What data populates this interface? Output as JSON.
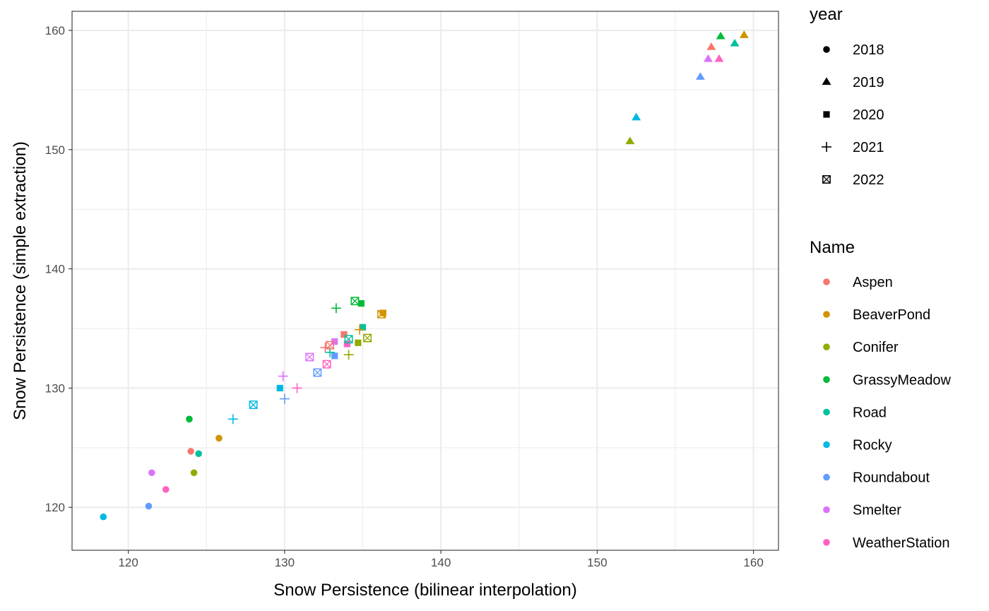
{
  "chart_data": {
    "type": "scatter",
    "xlabel": "Snow Persistence (bilinear interpolation)",
    "ylabel": "Snow Persistence (simple extraction)",
    "xlim": [
      116.4,
      161.6
    ],
    "ylim": [
      116.4,
      161.6
    ],
    "xticks": [
      120,
      130,
      140,
      150,
      160
    ],
    "yticks": [
      120,
      130,
      140,
      150,
      160
    ],
    "grid": true,
    "legend_position": "right",
    "legend_shape": {
      "title": "year",
      "entries": [
        {
          "label": "2018",
          "shape": "circle"
        },
        {
          "label": "2019",
          "shape": "triangle"
        },
        {
          "label": "2020",
          "shape": "square"
        },
        {
          "label": "2021",
          "shape": "plus"
        },
        {
          "label": "2022",
          "shape": "boxcross"
        }
      ]
    },
    "legend_color": {
      "title": "Name",
      "entries": [
        {
          "label": "Aspen",
          "color": "#F8766D"
        },
        {
          "label": "BeaverPond",
          "color": "#D39200"
        },
        {
          "label": "Conifer",
          "color": "#93AA00"
        },
        {
          "label": "GrassyMeadow",
          "color": "#00BA38"
        },
        {
          "label": "Road",
          "color": "#00C19F"
        },
        {
          "label": "Rocky",
          "color": "#00B9E3"
        },
        {
          "label": "Roundabout",
          "color": "#619CFF"
        },
        {
          "label": "Smelter",
          "color": "#DB72FB"
        },
        {
          "label": "WeatherStation",
          "color": "#FF61C3"
        }
      ]
    },
    "points": [
      {
        "name": "Aspen",
        "year": "2018",
        "x": 124.0,
        "y": 124.7
      },
      {
        "name": "BeaverPond",
        "year": "2018",
        "x": 125.8,
        "y": 125.8
      },
      {
        "name": "Conifer",
        "year": "2018",
        "x": 124.2,
        "y": 122.9
      },
      {
        "name": "GrassyMeadow",
        "year": "2018",
        "x": 123.9,
        "y": 127.4
      },
      {
        "name": "Road",
        "year": "2018",
        "x": 124.5,
        "y": 124.5
      },
      {
        "name": "Rocky",
        "year": "2018",
        "x": 118.4,
        "y": 119.2
      },
      {
        "name": "Roundabout",
        "year": "2018",
        "x": 121.3,
        "y": 120.1
      },
      {
        "name": "Smelter",
        "year": "2018",
        "x": 121.5,
        "y": 122.9
      },
      {
        "name": "WeatherStation",
        "year": "2018",
        "x": 122.4,
        "y": 121.5
      },
      {
        "name": "Aspen",
        "year": "2019",
        "x": 157.3,
        "y": 158.6
      },
      {
        "name": "BeaverPond",
        "year": "2019",
        "x": 159.4,
        "y": 159.6
      },
      {
        "name": "Conifer",
        "year": "2019",
        "x": 152.1,
        "y": 150.7
      },
      {
        "name": "GrassyMeadow",
        "year": "2019",
        "x": 157.9,
        "y": 159.5
      },
      {
        "name": "Road",
        "year": "2019",
        "x": 158.8,
        "y": 158.9
      },
      {
        "name": "Rocky",
        "year": "2019",
        "x": 152.5,
        "y": 152.7
      },
      {
        "name": "Roundabout",
        "year": "2019",
        "x": 156.6,
        "y": 156.1
      },
      {
        "name": "Smelter",
        "year": "2019",
        "x": 157.1,
        "y": 157.6
      },
      {
        "name": "WeatherStation",
        "year": "2019",
        "x": 157.8,
        "y": 157.6
      },
      {
        "name": "Aspen",
        "year": "2020",
        "x": 133.8,
        "y": 134.5
      },
      {
        "name": "BeaverPond",
        "year": "2020",
        "x": 136.3,
        "y": 136.3
      },
      {
        "name": "Conifer",
        "year": "2020",
        "x": 134.7,
        "y": 133.8
      },
      {
        "name": "GrassyMeadow",
        "year": "2020",
        "x": 134.9,
        "y": 137.1
      },
      {
        "name": "Road",
        "year": "2020",
        "x": 135.0,
        "y": 135.1
      },
      {
        "name": "Rocky",
        "year": "2020",
        "x": 129.7,
        "y": 130.0
      },
      {
        "name": "Roundabout",
        "year": "2020",
        "x": 133.2,
        "y": 132.7
      },
      {
        "name": "Smelter",
        "year": "2020",
        "x": 133.2,
        "y": 133.9
      },
      {
        "name": "WeatherStation",
        "year": "2020",
        "x": 134.0,
        "y": 133.7
      },
      {
        "name": "Aspen",
        "year": "2021",
        "x": 132.6,
        "y": 133.4
      },
      {
        "name": "BeaverPond",
        "year": "2021",
        "x": 134.8,
        "y": 134.9
      },
      {
        "name": "Conifer",
        "year": "2021",
        "x": 134.1,
        "y": 132.8
      },
      {
        "name": "GrassyMeadow",
        "year": "2021",
        "x": 133.3,
        "y": 136.7
      },
      {
        "name": "Road",
        "year": "2021",
        "x": 132.9,
        "y": 133.0
      },
      {
        "name": "Rocky",
        "year": "2021",
        "x": 126.7,
        "y": 127.4
      },
      {
        "name": "Roundabout",
        "year": "2021",
        "x": 130.0,
        "y": 129.1
      },
      {
        "name": "Smelter",
        "year": "2021",
        "x": 129.9,
        "y": 131.0
      },
      {
        "name": "WeatherStation",
        "year": "2021",
        "x": 130.8,
        "y": 130.0
      },
      {
        "name": "Aspen",
        "year": "2022",
        "x": 132.9,
        "y": 133.6
      },
      {
        "name": "BeaverPond",
        "year": "2022",
        "x": 136.2,
        "y": 136.2
      },
      {
        "name": "Conifer",
        "year": "2022",
        "x": 135.3,
        "y": 134.2
      },
      {
        "name": "GrassyMeadow",
        "year": "2022",
        "x": 134.5,
        "y": 137.3
      },
      {
        "name": "Road",
        "year": "2022",
        "x": 134.1,
        "y": 134.1
      },
      {
        "name": "Rocky",
        "year": "2022",
        "x": 128.0,
        "y": 128.6
      },
      {
        "name": "Roundabout",
        "year": "2022",
        "x": 132.1,
        "y": 131.3
      },
      {
        "name": "Smelter",
        "year": "2022",
        "x": 131.6,
        "y": 132.6
      },
      {
        "name": "WeatherStation",
        "year": "2022",
        "x": 132.7,
        "y": 132.0
      }
    ]
  }
}
